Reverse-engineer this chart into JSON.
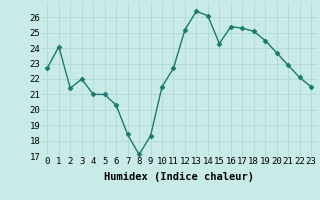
{
  "x": [
    0,
    1,
    2,
    3,
    4,
    5,
    6,
    7,
    8,
    9,
    10,
    11,
    12,
    13,
    14,
    15,
    16,
    17,
    18,
    19,
    20,
    21,
    22,
    23
  ],
  "y": [
    22.7,
    24.1,
    21.4,
    22.0,
    21.0,
    21.0,
    20.3,
    18.4,
    17.1,
    18.3,
    21.5,
    22.7,
    25.2,
    26.4,
    26.1,
    24.3,
    25.4,
    25.3,
    25.1,
    24.5,
    23.7,
    22.9,
    22.1,
    21.5
  ],
  "line_color": "#1a7a6e",
  "marker": "D",
  "marker_size": 2.5,
  "bg_color": "#c8ebe8",
  "grid_color": "#b0d8d4",
  "xlabel": "Humidex (Indice chaleur)",
  "ylim": [
    17,
    27
  ],
  "xlim": [
    -0.5,
    23.5
  ],
  "yticks": [
    17,
    18,
    19,
    20,
    21,
    22,
    23,
    24,
    25,
    26
  ],
  "xticks": [
    0,
    1,
    2,
    3,
    4,
    5,
    6,
    7,
    8,
    9,
    10,
    11,
    12,
    13,
    14,
    15,
    16,
    17,
    18,
    19,
    20,
    21,
    22,
    23
  ],
  "xlabel_fontsize": 7.5,
  "tick_fontsize": 6.5,
  "line_width": 1.0
}
